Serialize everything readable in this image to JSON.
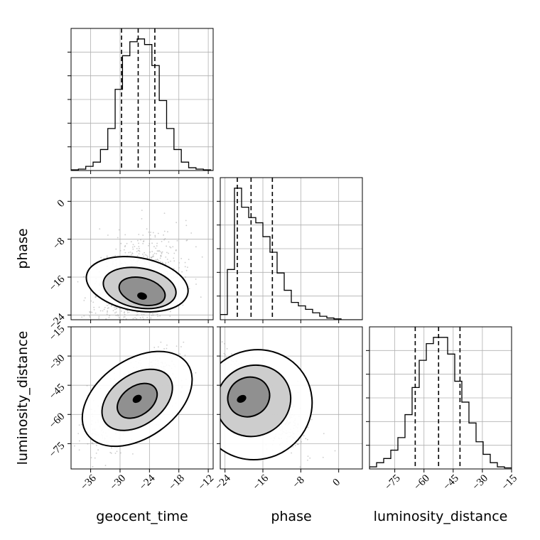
{
  "chart_data": {
    "type": "corner",
    "parameters": [
      "geocent_time",
      "phase",
      "luminosity_distance"
    ],
    "axis_labels": {
      "geocent_time": "geocent_time",
      "phase": "phase",
      "luminosity_distance": "luminosity_distance"
    },
    "ranges": {
      "geocent_time": [
        -40,
        -11
      ],
      "phase": [
        -25,
        5
      ],
      "luminosity_distance": [
        -88,
        -15
      ]
    },
    "ticks": {
      "geocent_time": [
        -36,
        -30,
        -24,
        -18,
        -12
      ],
      "phase": [
        -24,
        -16,
        -8,
        0
      ],
      "luminosity_distance": [
        -75,
        -60,
        -45,
        -30,
        -15
      ]
    },
    "quantiles": {
      "geocent_time": [
        -29.7,
        -26.3,
        -22.9
      ],
      "phase": [
        -21.4,
        -18.5,
        -14.0
      ],
      "luminosity_distance": [
        -64.5,
        -52.5,
        -41.5
      ]
    },
    "histograms": {
      "geocent_time": {
        "edges": [
          -40,
          -38.5,
          -37,
          -35.5,
          -34,
          -32.5,
          -31,
          -29.5,
          -28,
          -26.5,
          -25,
          -23.5,
          -22,
          -20.5,
          -19,
          -17.5,
          -16,
          -14.5,
          -13,
          -11.5,
          -11
        ],
        "counts": [
          0.5,
          1,
          3,
          6,
          15,
          30,
          58,
          82,
          92,
          94,
          90,
          75,
          50,
          30,
          15,
          6,
          2,
          1,
          0.5,
          0
        ]
      },
      "phase": {
        "edges": [
          -25,
          -23.5,
          -22,
          -20.5,
          -19,
          -17.5,
          -16,
          -14.5,
          -13,
          -11.5,
          -10,
          -8.5,
          -7,
          -5.5,
          -4,
          -2.5,
          -1,
          0.5,
          2,
          3.5,
          5
        ],
        "counts": [
          3,
          29,
          76,
          65,
          59,
          56,
          48,
          39,
          27,
          17,
          10,
          8,
          6,
          4,
          2,
          1,
          0.5,
          0,
          0,
          0
        ]
      },
      "luminosity_distance": {
        "edges": [
          -88,
          -84.35,
          -80.7,
          -77.05,
          -73.4,
          -69.75,
          -66.1,
          -62.45,
          -58.8,
          -55.15,
          -51.5,
          -47.85,
          -44.2,
          -40.55,
          -36.9,
          -33.25,
          -29.6,
          -25.95,
          -22.3,
          -18.65,
          -15
        ],
        "counts": [
          1,
          3,
          5,
          9,
          15,
          26,
          39,
          52,
          60,
          63,
          63,
          55,
          42,
          32,
          22,
          13,
          7,
          3,
          1,
          0.5
        ]
      }
    },
    "contours_2d": [
      {
        "x": "geocent_time",
        "y": "phase",
        "peak": [
          -25.5,
          -20.0
        ],
        "levels": [
          {
            "center": [
              -26.5,
              -17.5
            ],
            "rx": 10.5,
            "ry": 5.6,
            "rot": 10
          },
          {
            "center": [
              -26.0,
              -18.3
            ],
            "rx": 7.5,
            "ry": 4.2,
            "rot": 10
          },
          {
            "center": [
              -25.5,
              -19.0
            ],
            "rx": 4.8,
            "ry": 2.8,
            "rot": 15
          }
        ]
      },
      {
        "x": "geocent_time",
        "y": "luminosity_distance",
        "peak": [
          -26.5,
          -52.0
        ],
        "levels": [
          {
            "center": [
              -26.5,
              -52.0
            ],
            "rx": 12.5,
            "ry": 20.0,
            "rot": -35
          },
          {
            "center": [
              -26.5,
              -52.5
            ],
            "rx": 8.0,
            "ry": 13.0,
            "rot": -35
          },
          {
            "center": [
              -26.5,
              -53.0
            ],
            "rx": 4.5,
            "ry": 7.5,
            "rot": -35
          }
        ]
      },
      {
        "x": "phase",
        "y": "luminosity_distance",
        "peak": [
          -20.5,
          -52.0
        ],
        "levels": [
          {
            "center": [
              -17.5,
              -55.0
            ],
            "rx": 12.0,
            "ry": 28.0,
            "rot": -28
          },
          {
            "center": [
              -18.0,
              -53.0
            ],
            "rx": 8.0,
            "ry": 18.0,
            "rot": -28
          },
          {
            "center": [
              -19.0,
              -51.0
            ],
            "rx": 4.5,
            "ry": 10.0,
            "rot": -28
          }
        ]
      }
    ],
    "samples_2d": [
      {
        "x": "geocent_time",
        "y": "phase",
        "mean": [
          -26.5,
          -17.0
        ],
        "sd": [
          4.3,
          5.0
        ],
        "corr": 0.3,
        "n": 900,
        "seed": 11
      },
      {
        "x": "geocent_time",
        "y": "luminosity_distance",
        "mean": [
          -26.5,
          -52.0
        ],
        "sd": [
          4.3,
          11.0
        ],
        "corr": 0.65,
        "n": 900,
        "seed": 22
      },
      {
        "x": "phase",
        "y": "luminosity_distance",
        "mean": [
          -17.0,
          -52.0
        ],
        "sd": [
          4.5,
          11.0
        ],
        "corr": -0.75,
        "n": 900,
        "seed": 33
      }
    ],
    "grid": true,
    "colors": {
      "line": "#000000",
      "grid": "#b0b0b0",
      "scatter": "#9a9a9a"
    }
  }
}
